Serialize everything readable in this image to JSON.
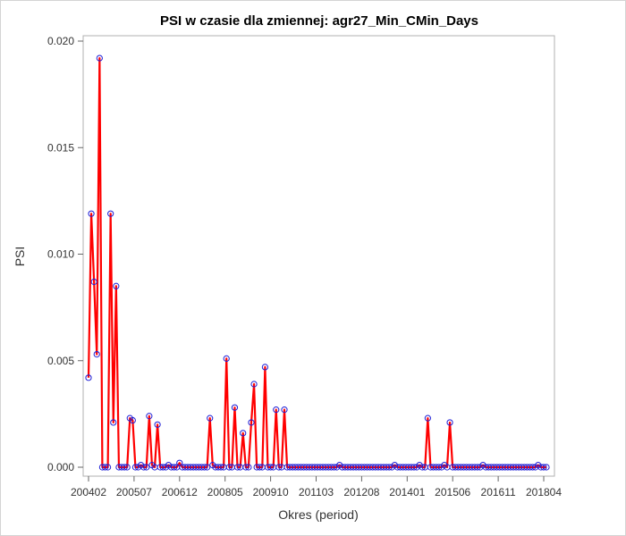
{
  "chart_data": {
    "type": "line",
    "title": "PSI w czasie dla zmiennej: agr27_Min_CMin_Days",
    "xlabel": "Okres (period)",
    "ylabel": "PSI",
    "ylim": [
      0,
      0.02
    ],
    "yticks": [
      "0.000",
      "0.005",
      "0.010",
      "0.015",
      "0.020"
    ],
    "xticks": [
      "200402",
      "200507",
      "200612",
      "200805",
      "200910",
      "201103",
      "201208",
      "201401",
      "201506",
      "201611",
      "201804"
    ],
    "x_start": "200402",
    "x_end": "201805",
    "series": [
      {
        "line_color": "#ff0000",
        "marker_color": "#1f1fd6",
        "values": [
          0.0042,
          0.0119,
          0.0087,
          0.0053,
          0.0192,
          0.0,
          0.0,
          0.0,
          0.0119,
          0.0021,
          0.0085,
          0.0,
          0.0,
          0.0,
          0.0,
          0.0023,
          0.0022,
          0.0,
          0.0,
          0.0001,
          0.0,
          0.0,
          0.0024,
          0.0001,
          0.0,
          0.002,
          0.0,
          0.0,
          0.0,
          0.0001,
          0.0,
          0.0,
          0.0,
          0.0002,
          0.0,
          0.0,
          0.0,
          0.0,
          0.0,
          0.0,
          0.0,
          0.0,
          0.0,
          0.0,
          0.0023,
          0.0001,
          0.0,
          0.0,
          0.0,
          0.0,
          0.0051,
          0.0,
          0.0,
          0.0028,
          0.0,
          0.0,
          0.0016,
          0.0,
          0.0,
          0.0021,
          0.0039,
          0.0,
          0.0,
          0.0,
          0.0047,
          0.0,
          0.0,
          0.0,
          0.0027,
          0.0,
          0.0,
          0.0027,
          0.0,
          0.0,
          0.0,
          0.0,
          0.0,
          0.0,
          0.0,
          0.0,
          0.0,
          0.0,
          0.0,
          0.0,
          0.0,
          0.0,
          0.0,
          0.0,
          0.0,
          0.0,
          0.0,
          0.0001,
          0.0,
          0.0,
          0.0,
          0.0,
          0.0,
          0.0,
          0.0,
          0.0,
          0.0,
          0.0,
          0.0,
          0.0,
          0.0,
          0.0,
          0.0,
          0.0,
          0.0,
          0.0,
          0.0,
          0.0001,
          0.0,
          0.0,
          0.0,
          0.0,
          0.0,
          0.0,
          0.0,
          0.0,
          0.0001,
          0.0,
          0.0,
          0.0023,
          0.0,
          0.0,
          0.0,
          0.0,
          0.0,
          0.0001,
          0.0,
          0.0021,
          0.0,
          0.0,
          0.0,
          0.0,
          0.0,
          0.0,
          0.0,
          0.0,
          0.0,
          0.0,
          0.0,
          0.0001,
          0.0,
          0.0,
          0.0,
          0.0,
          0.0,
          0.0,
          0.0,
          0.0,
          0.0,
          0.0,
          0.0,
          0.0,
          0.0,
          0.0,
          0.0,
          0.0,
          0.0,
          0.0,
          0.0,
          0.0001,
          0.0,
          0.0,
          0.0
        ]
      }
    ],
    "grid": false,
    "legend": "none"
  }
}
